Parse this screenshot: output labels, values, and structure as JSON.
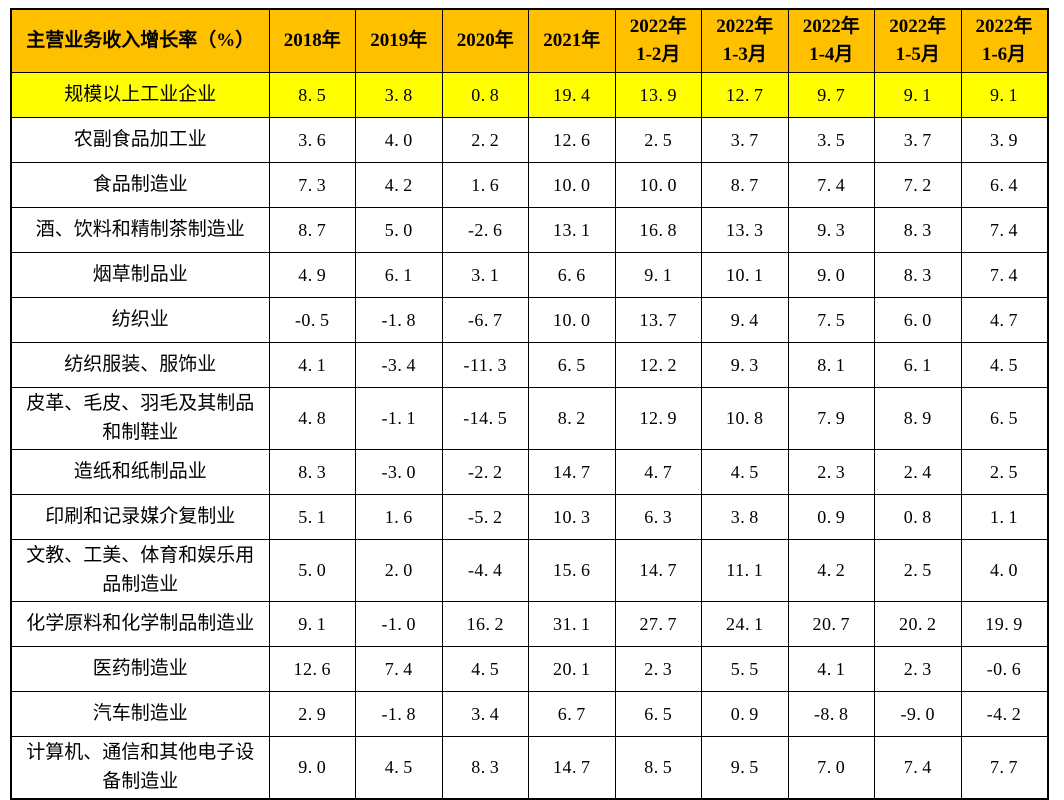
{
  "colors": {
    "header_bg": "#FFC000",
    "highlight_bg": "#FFFF00",
    "border": "#000000",
    "text": "#000000",
    "page_bg": "#FFFFFF"
  },
  "chart_data": {
    "type": "table",
    "title": "主营业务收入增长率（%）",
    "corner_label": "主营业务收入增长率（%）",
    "columns": [
      {
        "label": "2018年"
      },
      {
        "label": "2019年"
      },
      {
        "label": "2020年"
      },
      {
        "label": "2021年"
      },
      {
        "label": "2022年",
        "sub": "1-2月"
      },
      {
        "label": "2022年",
        "sub": "1-3月"
      },
      {
        "label": "2022年",
        "sub": "1-4月"
      },
      {
        "label": "2022年",
        "sub": "1-5月"
      },
      {
        "label": "2022年",
        "sub": "1-6月"
      }
    ],
    "rows": [
      {
        "label": "规模以上工业企业",
        "highlight": true,
        "values": [
          "8.5",
          "3.8",
          "0.8",
          "19.4",
          "13.9",
          "12.7",
          "9.7",
          "9.1",
          "9.1"
        ]
      },
      {
        "label": "农副食品加工业",
        "values": [
          "3.6",
          "4.0",
          "2.2",
          "12.6",
          "2.5",
          "3.7",
          "3.5",
          "3.7",
          "3.9"
        ]
      },
      {
        "label": "食品制造业",
        "values": [
          "7.3",
          "4.2",
          "1.6",
          "10.0",
          "10.0",
          "8.7",
          "7.4",
          "7.2",
          "6.4"
        ]
      },
      {
        "label": "酒、饮料和精制茶制造业",
        "values": [
          "8.7",
          "5.0",
          "-2.6",
          "13.1",
          "16.8",
          "13.3",
          "9.3",
          "8.3",
          "7.4"
        ]
      },
      {
        "label": "烟草制品业",
        "values": [
          "4.9",
          "6.1",
          "3.1",
          "6.6",
          "9.1",
          "10.1",
          "9.0",
          "8.3",
          "7.4"
        ]
      },
      {
        "label": "纺织业",
        "values": [
          "-0.5",
          "-1.8",
          "-6.7",
          "10.0",
          "13.7",
          "9.4",
          "7.5",
          "6.0",
          "4.7"
        ]
      },
      {
        "label": "纺织服装、服饰业",
        "values": [
          "4.1",
          "-3.4",
          "-11.3",
          "6.5",
          "12.2",
          "9.3",
          "8.1",
          "6.1",
          "4.5"
        ]
      },
      {
        "label": "皮革、毛皮、羽毛及其制品和制鞋业",
        "values": [
          "4.8",
          "-1.1",
          "-14.5",
          "8.2",
          "12.9",
          "10.8",
          "7.9",
          "8.9",
          "6.5"
        ]
      },
      {
        "label": "造纸和纸制品业",
        "values": [
          "8.3",
          "-3.0",
          "-2.2",
          "14.7",
          "4.7",
          "4.5",
          "2.3",
          "2.4",
          "2.5"
        ]
      },
      {
        "label": "印刷和记录媒介复制业",
        "values": [
          "5.1",
          "1.6",
          "-5.2",
          "10.3",
          "6.3",
          "3.8",
          "0.9",
          "0.8",
          "1.1"
        ]
      },
      {
        "label": "文教、工美、体育和娱乐用品制造业",
        "values": [
          "5.0",
          "2.0",
          "-4.4",
          "15.6",
          "14.7",
          "11.1",
          "4.2",
          "2.5",
          "4.0"
        ]
      },
      {
        "label": "化学原料和化学制品制造业",
        "values": [
          "9.1",
          "-1.0",
          "16.2",
          "31.1",
          "27.7",
          "24.1",
          "20.7",
          "20.2",
          "19.9"
        ]
      },
      {
        "label": "医药制造业",
        "values": [
          "12.6",
          "7.4",
          "4.5",
          "20.1",
          "2.3",
          "5.5",
          "4.1",
          "2.3",
          "-0.6"
        ]
      },
      {
        "label": "汽车制造业",
        "values": [
          "2.9",
          "-1.8",
          "3.4",
          "6.7",
          "6.5",
          "0.9",
          "-8.8",
          "-9.0",
          "-4.2"
        ]
      },
      {
        "label": "计算机、通信和其他电子设备制造业",
        "values": [
          "9.0",
          "4.5",
          "8.3",
          "14.7",
          "8.5",
          "9.5",
          "7.0",
          "7.4",
          "7.7"
        ]
      }
    ]
  }
}
